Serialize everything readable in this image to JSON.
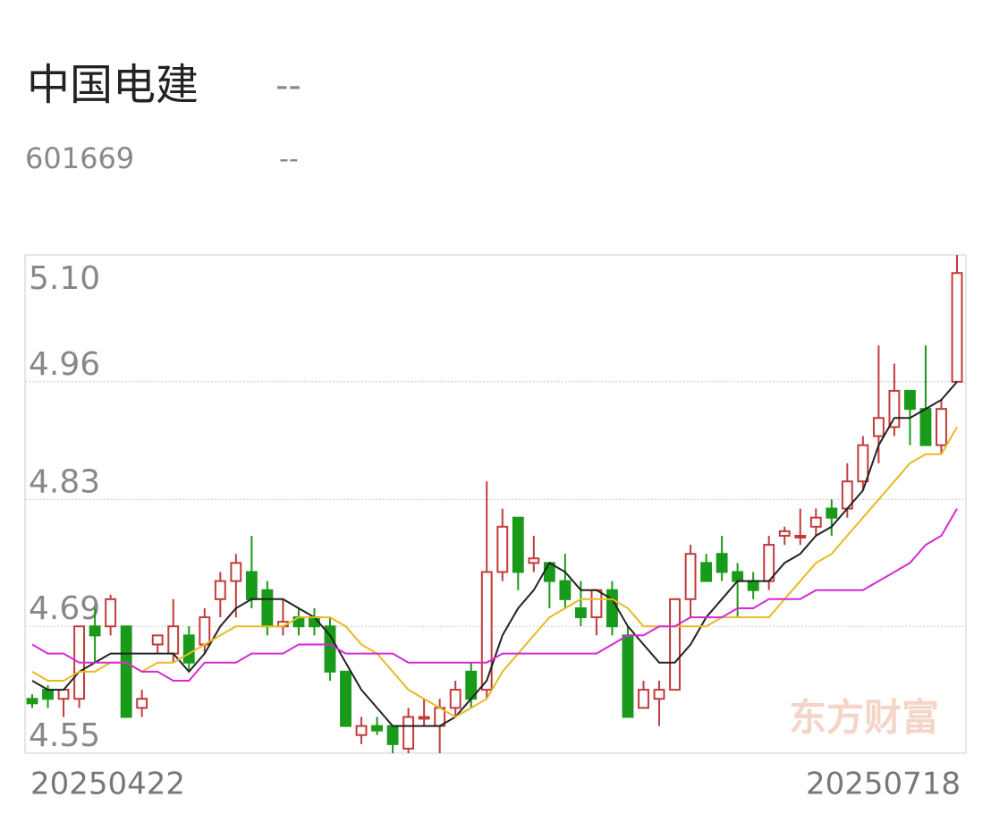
{
  "header": {
    "name": "中国电建",
    "price": "--",
    "code": "601669",
    "change": "--"
  },
  "chart_data": {
    "type": "candlestick",
    "watermark": "东方财富",
    "x_start_label": "20250422",
    "x_end_label": "20250718",
    "up_color": "#c23b3b",
    "down_color": "#1a9a1a",
    "ylim": [
      4.55,
      5.1
    ],
    "yticks": [
      {
        "value": 5.1,
        "label": "5.10"
      },
      4.96,
      4.83,
      4.69,
      4.55
    ],
    "grid": true,
    "open": [
      4.61,
      4.62,
      4.61,
      4.61,
      4.69,
      4.69,
      4.69,
      4.6,
      4.67,
      4.66,
      4.68,
      4.67,
      4.72,
      4.74,
      4.75,
      4.73,
      4.69,
      4.7,
      4.7,
      4.69,
      4.64,
      4.57,
      4.58,
      4.58,
      4.555,
      4.59,
      4.58,
      4.6,
      4.64,
      4.62,
      4.75,
      4.81,
      4.76,
      4.76,
      4.74,
      4.71,
      4.7,
      4.73,
      4.68,
      4.6,
      4.61,
      4.62,
      4.72,
      4.76,
      4.77,
      4.75,
      4.74,
      4.74,
      4.79,
      4.79,
      4.8,
      4.82,
      4.82,
      4.85,
      4.9,
      4.91,
      4.95,
      4.93,
      4.89,
      4.96
    ],
    "high": [
      4.615,
      4.625,
      4.62,
      4.69,
      4.71,
      4.725,
      4.69,
      4.62,
      4.68,
      4.72,
      4.69,
      4.71,
      4.75,
      4.77,
      4.79,
      4.74,
      4.72,
      4.71,
      4.71,
      4.7,
      4.64,
      4.59,
      4.59,
      4.58,
      4.6,
      4.61,
      4.61,
      4.63,
      4.65,
      4.85,
      4.82,
      4.81,
      4.79,
      4.76,
      4.77,
      4.74,
      4.73,
      4.74,
      4.69,
      4.63,
      4.63,
      4.72,
      4.78,
      4.77,
      4.79,
      4.76,
      4.75,
      4.79,
      4.8,
      4.82,
      4.82,
      4.83,
      4.87,
      4.9,
      5.0,
      4.98,
      4.95,
      5.0,
      4.94,
      5.1
    ],
    "low": [
      4.6,
      4.6,
      4.59,
      4.6,
      4.65,
      4.68,
      4.59,
      4.59,
      4.66,
      4.65,
      4.64,
      4.66,
      4.7,
      4.7,
      4.71,
      4.68,
      4.68,
      4.68,
      4.68,
      4.63,
      4.58,
      4.56,
      4.57,
      4.55,
      4.55,
      4.58,
      4.55,
      4.59,
      4.6,
      4.61,
      4.74,
      4.73,
      4.75,
      4.71,
      4.71,
      4.69,
      4.68,
      4.68,
      4.59,
      4.6,
      4.58,
      4.62,
      4.7,
      4.74,
      4.74,
      4.7,
      4.72,
      4.73,
      4.78,
      4.78,
      4.79,
      4.79,
      4.81,
      4.84,
      4.87,
      4.9,
      4.89,
      4.89,
      4.88,
      4.96
    ],
    "close": [
      4.605,
      4.61,
      4.62,
      4.69,
      4.68,
      4.72,
      4.59,
      4.61,
      4.68,
      4.69,
      4.65,
      4.7,
      4.74,
      4.76,
      4.72,
      4.69,
      4.695,
      4.69,
      4.69,
      4.64,
      4.58,
      4.58,
      4.575,
      4.56,
      4.59,
      4.59,
      4.6,
      4.62,
      4.61,
      4.75,
      4.8,
      4.75,
      4.765,
      4.74,
      4.72,
      4.7,
      4.73,
      4.69,
      4.59,
      4.62,
      4.62,
      4.72,
      4.77,
      4.74,
      4.75,
      4.74,
      4.73,
      4.78,
      4.795,
      4.79,
      4.81,
      4.81,
      4.85,
      4.89,
      4.92,
      4.95,
      4.93,
      4.89,
      4.93,
      5.08
    ],
    "ma": [
      {
        "color": "#222222",
        "values": [
          4.63,
          4.62,
          4.62,
          4.64,
          4.65,
          4.66,
          4.66,
          4.66,
          4.66,
          4.66,
          4.64,
          4.66,
          4.69,
          4.71,
          4.72,
          4.72,
          4.72,
          4.71,
          4.7,
          4.68,
          4.65,
          4.62,
          4.6,
          4.58,
          4.58,
          4.58,
          4.58,
          4.59,
          4.61,
          4.63,
          4.68,
          4.71,
          4.73,
          4.76,
          4.75,
          4.73,
          4.73,
          4.72,
          4.69,
          4.67,
          4.65,
          4.65,
          4.67,
          4.7,
          4.72,
          4.74,
          4.74,
          4.74,
          4.76,
          4.77,
          4.79,
          4.8,
          4.82,
          4.84,
          4.89,
          4.92,
          4.92,
          4.93,
          4.94,
          4.96
        ]
      },
      {
        "color": "#e8b923",
        "values": [
          4.64,
          4.63,
          4.63,
          4.64,
          4.64,
          4.65,
          4.65,
          4.64,
          4.65,
          4.65,
          4.66,
          4.67,
          4.68,
          4.69,
          4.69,
          4.69,
          4.69,
          4.7,
          4.7,
          4.7,
          4.69,
          4.67,
          4.66,
          4.64,
          4.62,
          4.61,
          4.6,
          4.59,
          4.6,
          4.61,
          4.64,
          4.66,
          4.68,
          4.7,
          4.71,
          4.72,
          4.72,
          4.72,
          4.71,
          4.69,
          4.69,
          4.69,
          4.69,
          4.69,
          4.7,
          4.7,
          4.7,
          4.7,
          4.72,
          4.74,
          4.76,
          4.77,
          4.79,
          4.81,
          4.83,
          4.85,
          4.87,
          4.88,
          4.88,
          4.91
        ]
      },
      {
        "color": "#d42ad4",
        "values": [
          4.67,
          4.66,
          4.66,
          4.65,
          4.65,
          4.65,
          4.65,
          4.64,
          4.64,
          4.63,
          4.63,
          4.65,
          4.65,
          4.65,
          4.66,
          4.66,
          4.66,
          4.67,
          4.67,
          4.67,
          4.66,
          4.66,
          4.66,
          4.66,
          4.65,
          4.65,
          4.65,
          4.65,
          4.65,
          4.65,
          4.66,
          4.66,
          4.66,
          4.66,
          4.66,
          4.66,
          4.66,
          4.67,
          4.68,
          4.68,
          4.69,
          4.69,
          4.7,
          4.7,
          4.7,
          4.71,
          4.71,
          4.72,
          4.72,
          4.72,
          4.73,
          4.73,
          4.73,
          4.73,
          4.74,
          4.75,
          4.76,
          4.78,
          4.79,
          4.82
        ]
      }
    ]
  }
}
